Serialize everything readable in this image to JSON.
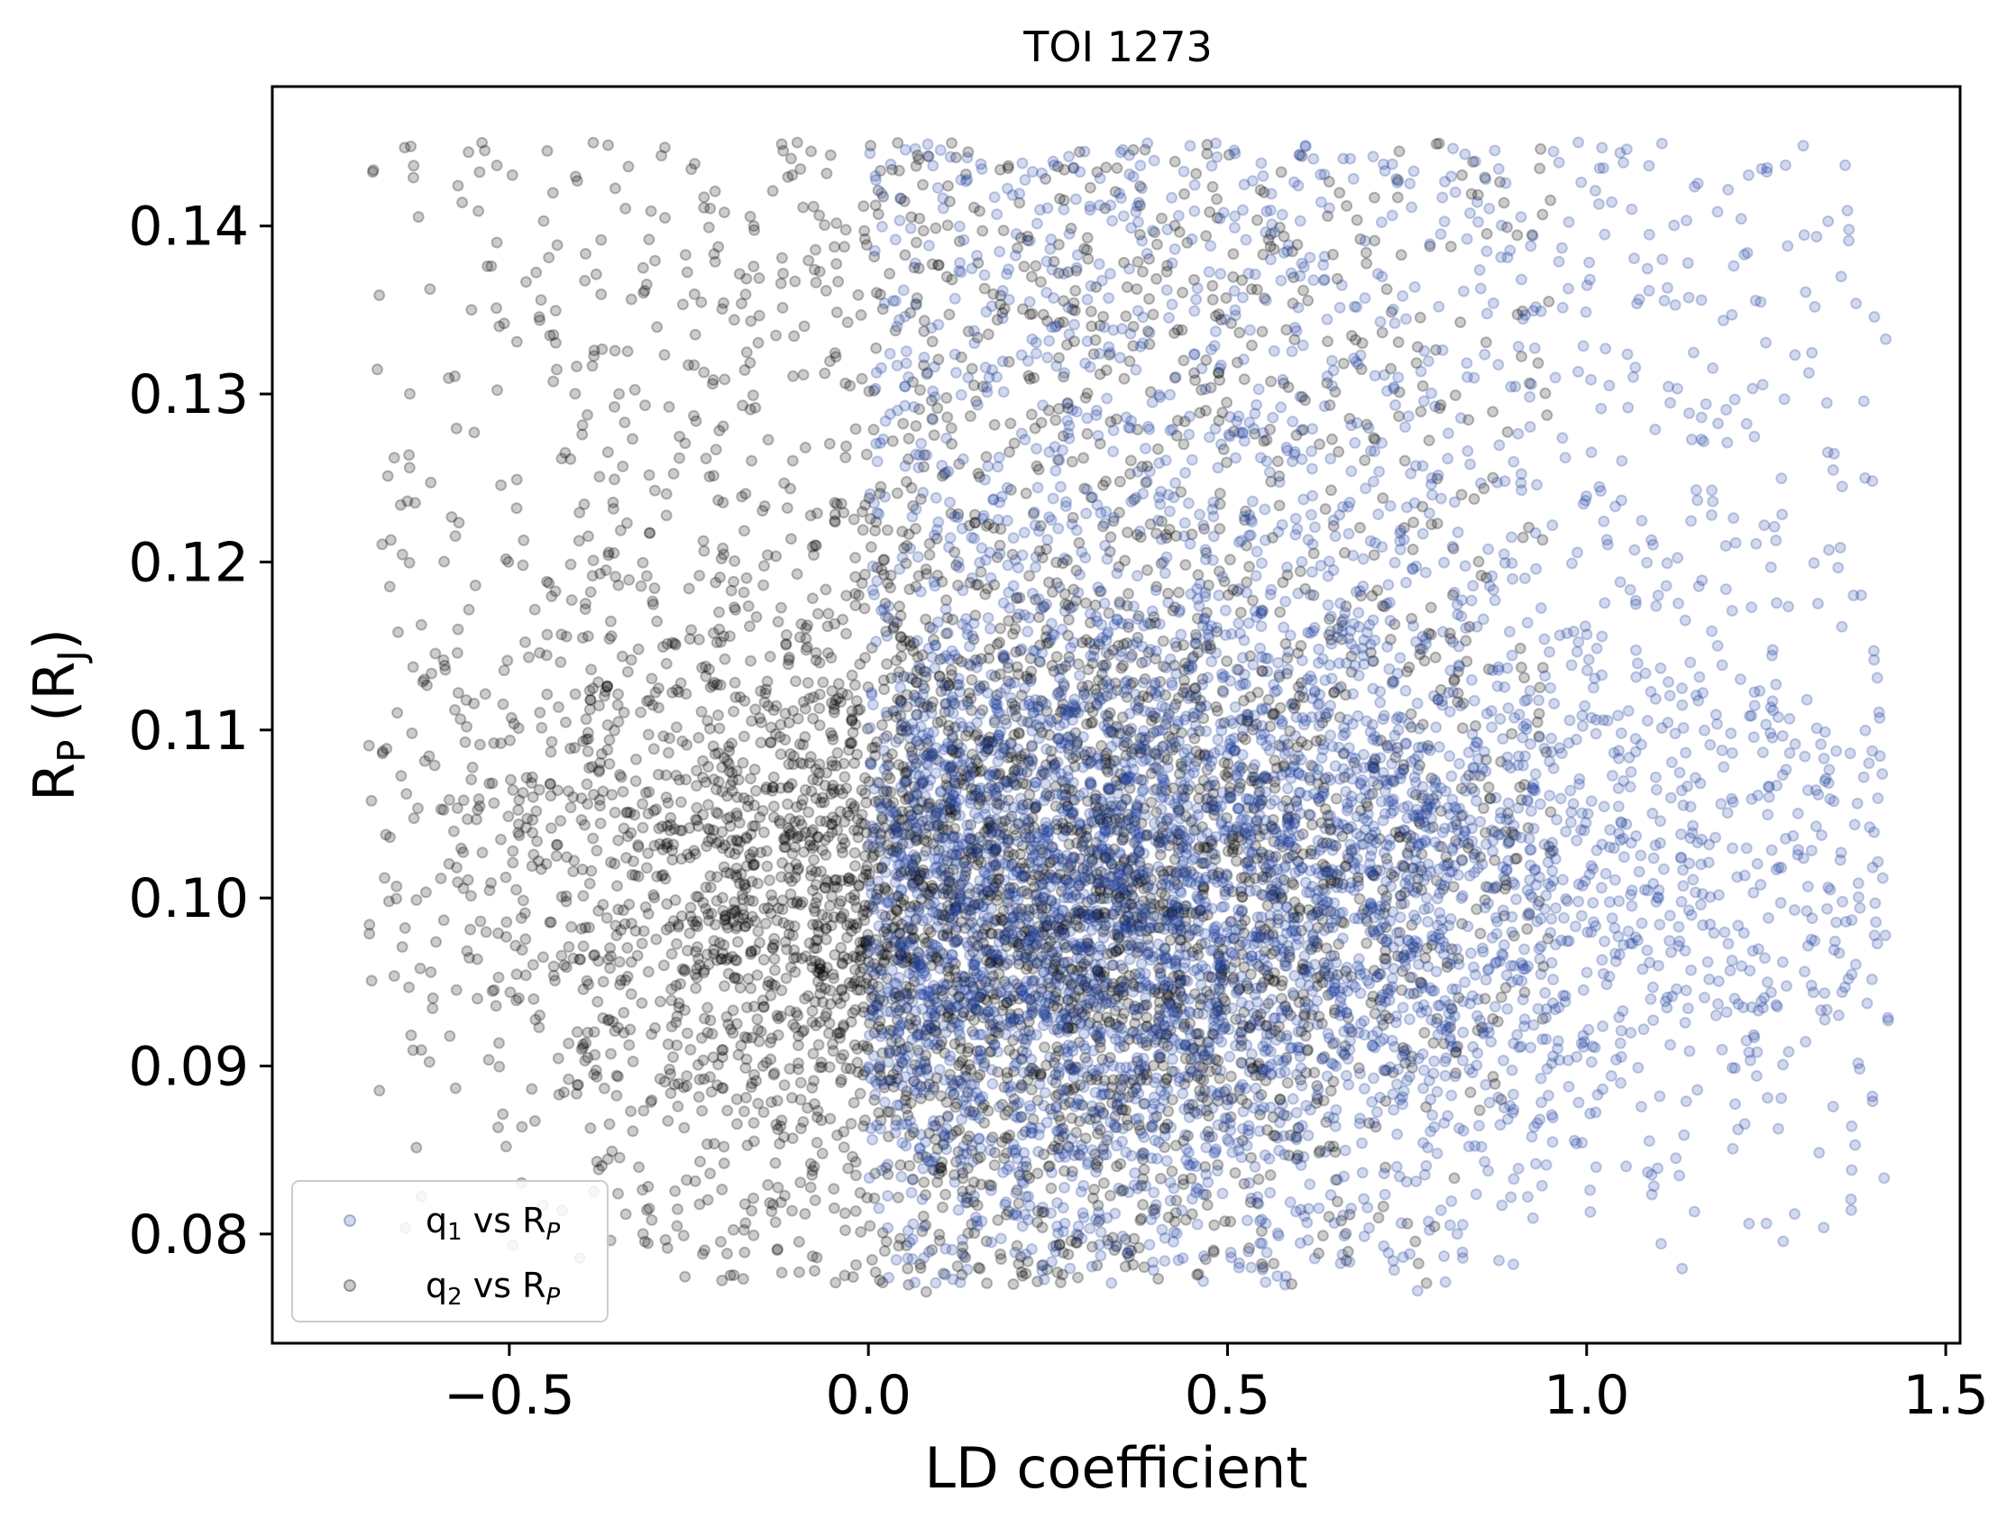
{
  "chart_data": {
    "type": "scatter",
    "title": "TOI 1273",
    "xlabel": "LD coefficient",
    "ylabel": "R_P (R_J)",
    "xlim": [
      -0.83,
      1.52
    ],
    "ylim": [
      0.0735,
      0.1483
    ],
    "xticks": [
      -0.5,
      0.0,
      0.5,
      1.0,
      1.5
    ],
    "xtick_labels": [
      "−0.5",
      "0.0",
      "0.5",
      "1.0",
      "1.5"
    ],
    "yticks": [
      0.08,
      0.09,
      0.1,
      0.11,
      0.12,
      0.13,
      0.14
    ],
    "ytick_labels": [
      "0.08",
      "0.09",
      "0.10",
      "0.11",
      "0.12",
      "0.13",
      "0.14"
    ],
    "grid": false,
    "legend_position": "lower-left",
    "series": [
      {
        "name": "q1 vs RP",
        "legend_base": "q",
        "legend_sub": "1",
        "legend_mid": " vs R",
        "legend_sub2": "P",
        "color": "#1f3fa0",
        "alpha": 0.2,
        "approx_points": 5000,
        "x_range": [
          0.0,
          1.42
        ],
        "y_range": [
          0.077,
          0.145
        ],
        "x_center": 0.45,
        "y_center": 0.104
      },
      {
        "name": "q2 vs RP",
        "legend_base": "q",
        "legend_sub": "2",
        "legend_mid": " vs R",
        "legend_sub2": "P",
        "color": "#000000",
        "alpha": 0.2,
        "approx_points": 5000,
        "x_range": [
          -0.7,
          0.95
        ],
        "y_range": [
          0.077,
          0.145
        ],
        "x_center": 0.15,
        "y_center": 0.104
      }
    ]
  }
}
